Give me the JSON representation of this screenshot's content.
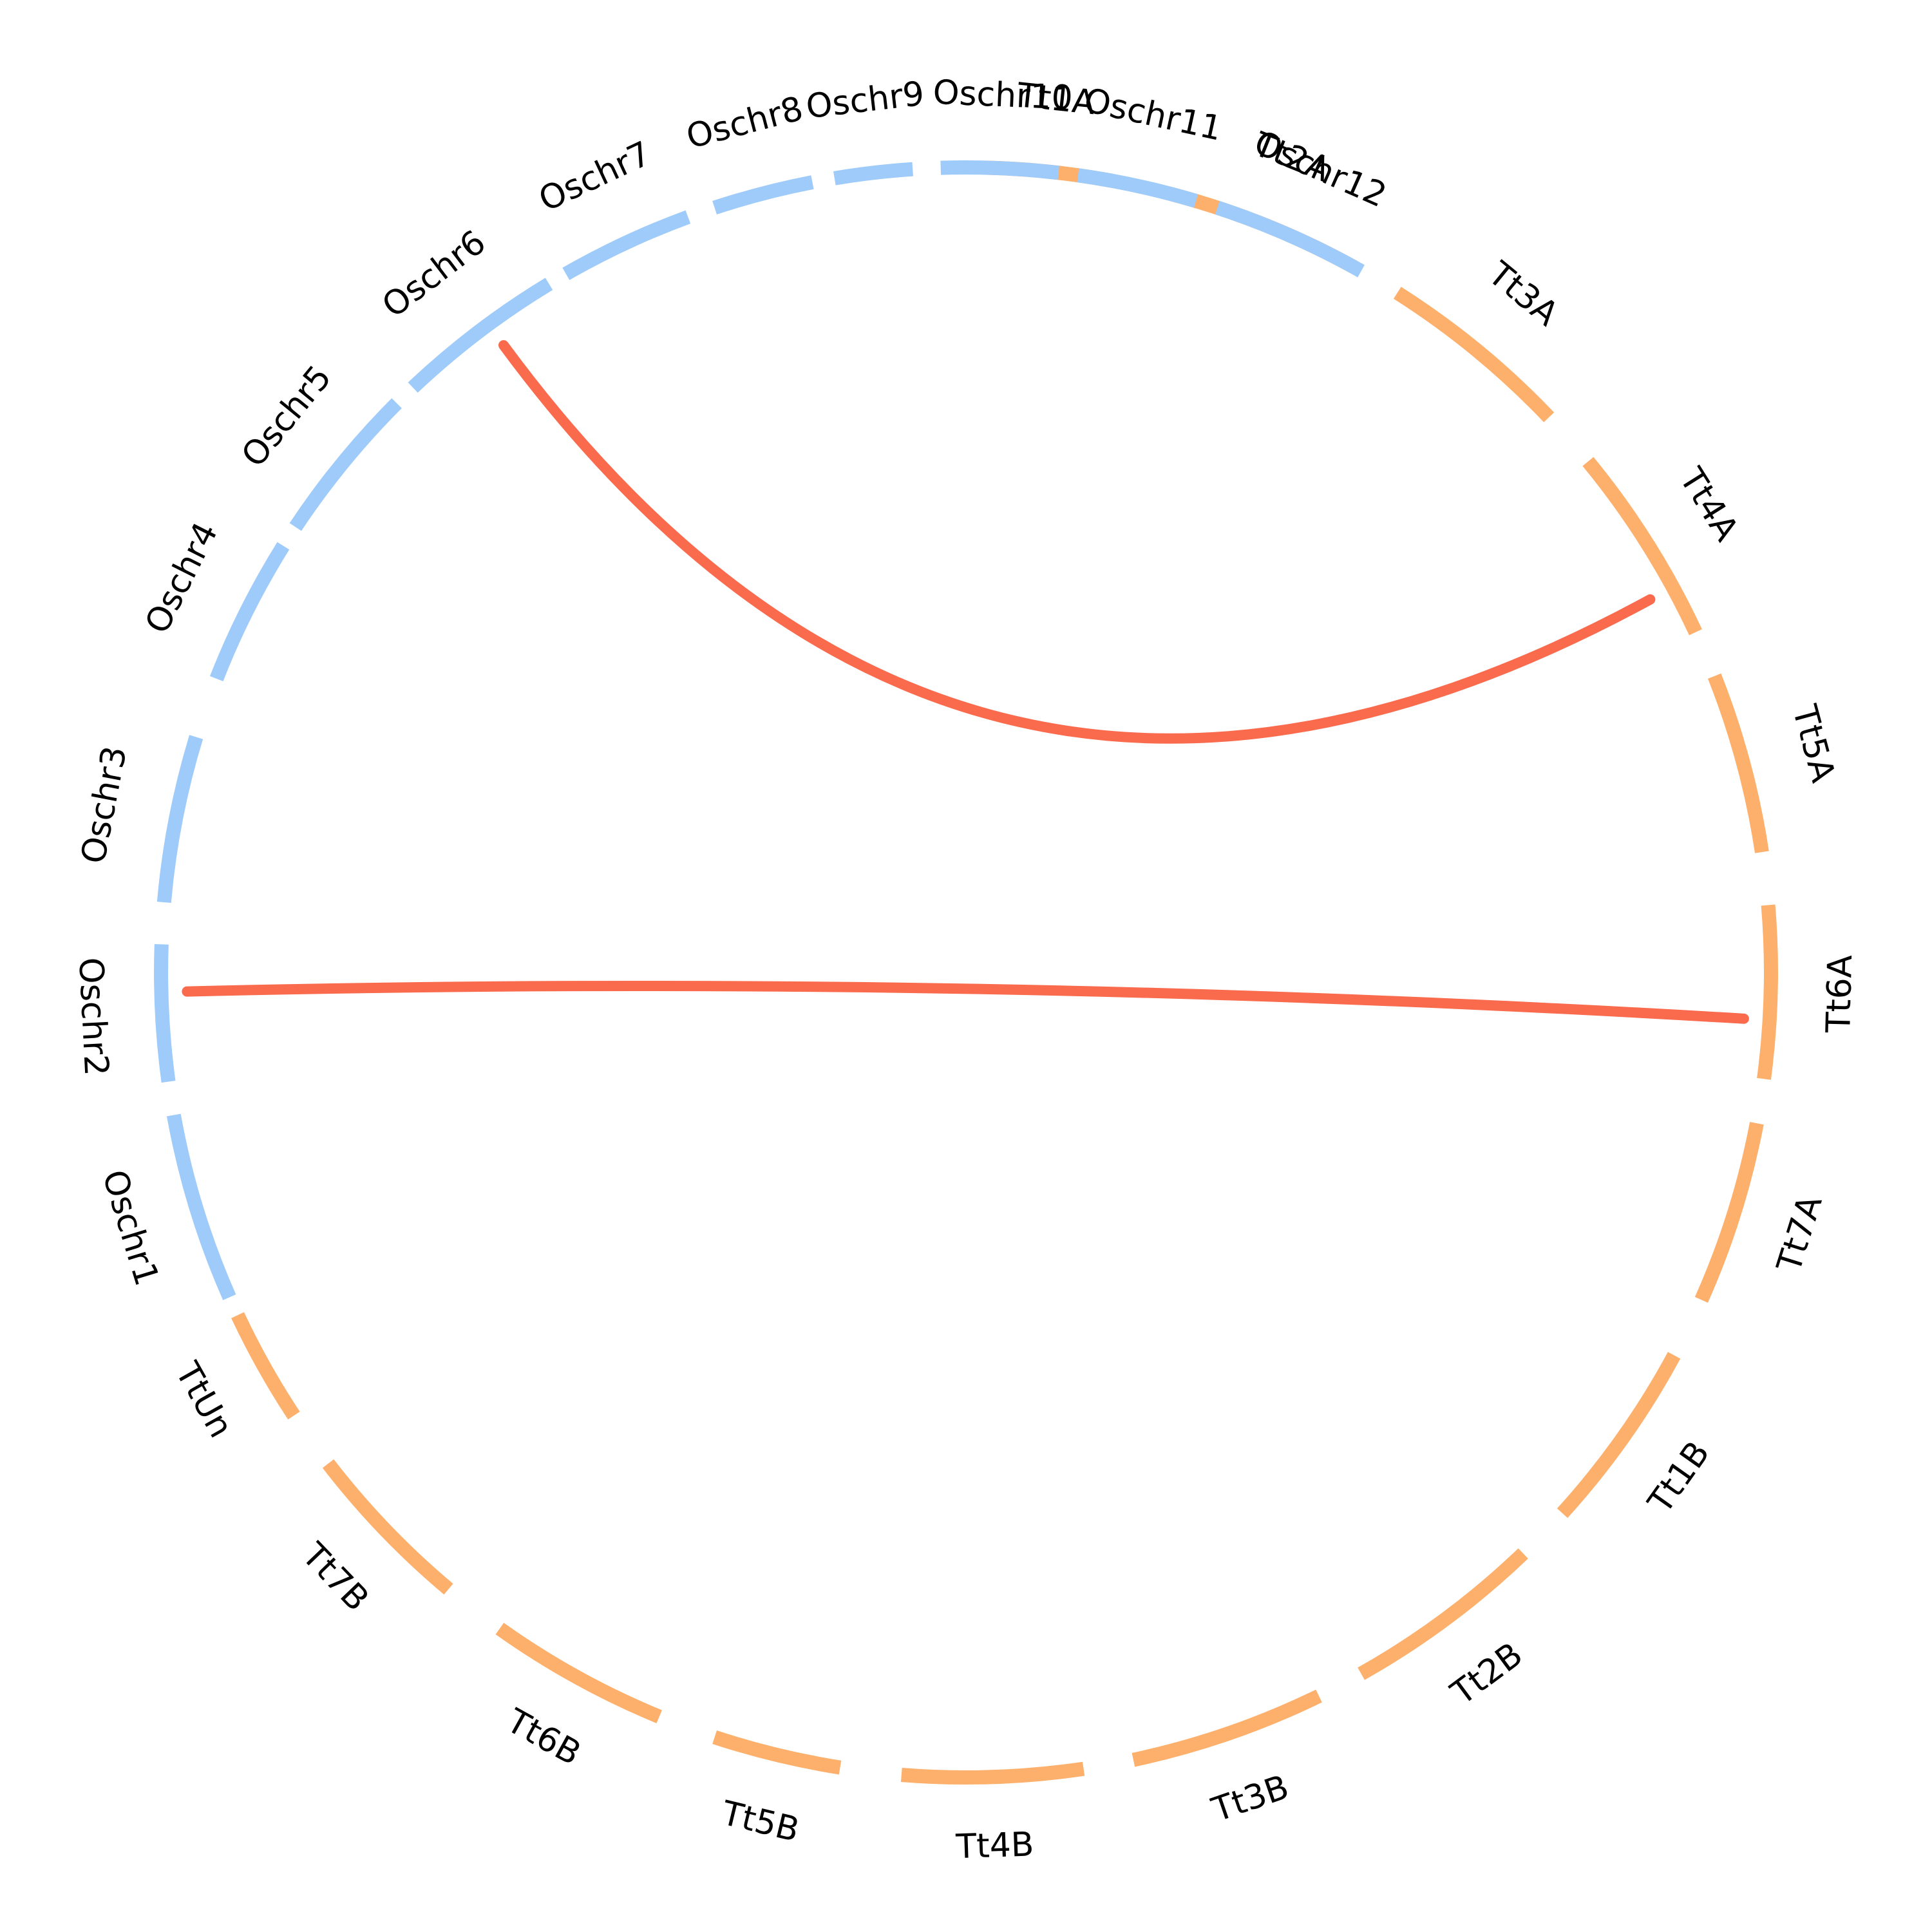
{
  "colors": {
    "Os": "#9ecbfa",
    "Tt": "#fdb06c",
    "link": "#fa6a4d"
  },
  "segments": [
    {
      "label": "Tt1A",
      "group": "Tt"
    },
    {
      "label": "Tt2A",
      "group": "Tt"
    },
    {
      "label": "Tt3A",
      "group": "Tt"
    },
    {
      "label": "Tt4A",
      "group": "Tt"
    },
    {
      "label": "Tt5A",
      "group": "Tt"
    },
    {
      "label": "Tt6A",
      "group": "Tt"
    },
    {
      "label": "Tt7A",
      "group": "Tt"
    },
    {
      "label": "Tt1B",
      "group": "Tt"
    },
    {
      "label": "Tt2B",
      "group": "Tt"
    },
    {
      "label": "Tt3B",
      "group": "Tt"
    },
    {
      "label": "Tt4B",
      "group": "Tt"
    },
    {
      "label": "Tt5B",
      "group": "Tt"
    },
    {
      "label": "Tt6B",
      "group": "Tt"
    },
    {
      "label": "Tt7B",
      "group": "Tt"
    },
    {
      "label": "TtUn",
      "group": "Tt"
    },
    {
      "label": "Oschr1",
      "group": "Os"
    },
    {
      "label": "Oschr2",
      "group": "Os"
    },
    {
      "label": "Oschr3",
      "group": "Os"
    },
    {
      "label": "Oschr4",
      "group": "Os"
    },
    {
      "label": "Oschr5",
      "group": "Os"
    },
    {
      "label": "Oschr6",
      "group": "Os"
    },
    {
      "label": "Oschr7",
      "group": "Os"
    },
    {
      "label": "Oschr8",
      "group": "Os"
    },
    {
      "label": "Oschr9",
      "group": "Os"
    },
    {
      "label": "Oschr10",
      "group": "Os"
    },
    {
      "label": "Oschr11",
      "group": "Os"
    },
    {
      "label": "Oschr12",
      "group": "Os"
    }
  ],
  "links": [
    {
      "from": "Oschr6",
      "to": "Tt4A"
    },
    {
      "from": "Oschr2",
      "to": "Tt6A"
    }
  ]
}
